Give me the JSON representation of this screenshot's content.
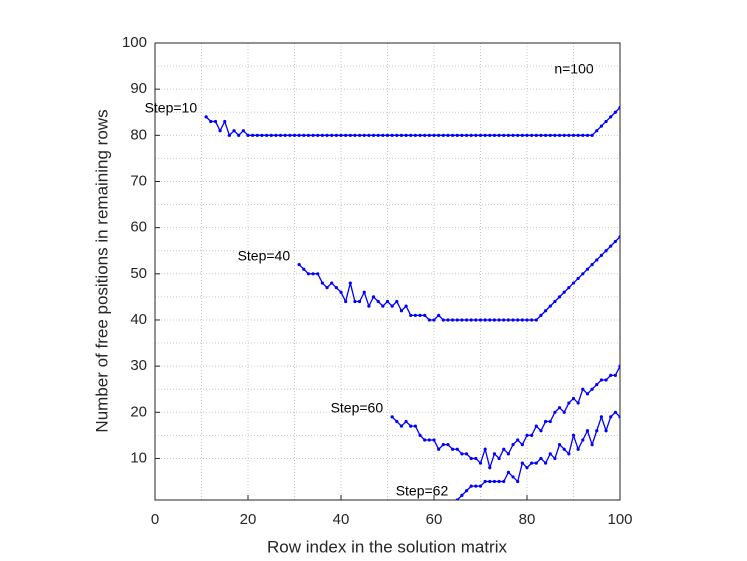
{
  "chart_data": {
    "type": "line",
    "xlabel": "Row index in the solution matrix",
    "ylabel": "Number of free positions in remaining rows",
    "annotations": [
      "n=100"
    ],
    "x": [
      1,
      2,
      3,
      4,
      5,
      6,
      7,
      8,
      9,
      10,
      11,
      12,
      13,
      14,
      15,
      16,
      17,
      18,
      19,
      20,
      21,
      22,
      23,
      24,
      25,
      26,
      27,
      28,
      29,
      30,
      31,
      32,
      33,
      34,
      35,
      36,
      37,
      38,
      39,
      40,
      41,
      42,
      43,
      44,
      45,
      46,
      47,
      48,
      49,
      50,
      51,
      52,
      53,
      54,
      55,
      56,
      57,
      58,
      59,
      60,
      61,
      62,
      63,
      64,
      65,
      66,
      67,
      68,
      69,
      70,
      71,
      72,
      73,
      74,
      75,
      76,
      77,
      78,
      79,
      80,
      81,
      82,
      83,
      84,
      85,
      86,
      87,
      88,
      89,
      90,
      91,
      92,
      93,
      94,
      95,
      96,
      97,
      98,
      99,
      100
    ],
    "series": [
      {
        "name": "Step=10",
        "color": "#0000ff",
        "values": [
          null,
          null,
          null,
          null,
          null,
          null,
          null,
          null,
          null,
          null,
          84,
          83,
          83,
          81,
          83,
          80,
          81,
          80,
          81,
          80,
          80,
          80,
          80,
          80,
          80,
          80,
          80,
          80,
          80,
          80,
          80,
          80,
          80,
          80,
          80,
          80,
          80,
          80,
          80,
          80,
          80,
          80,
          80,
          80,
          80,
          80,
          80,
          80,
          80,
          80,
          80,
          80,
          80,
          80,
          80,
          80,
          80,
          80,
          80,
          80,
          80,
          80,
          80,
          80,
          80,
          80,
          80,
          80,
          80,
          80,
          80,
          80,
          80,
          80,
          80,
          80,
          80,
          80,
          80,
          80,
          80,
          80,
          80,
          80,
          80,
          80,
          80,
          80,
          80,
          80,
          80,
          80,
          80,
          80,
          81,
          82,
          83,
          84,
          85,
          86
        ]
      },
      {
        "name": "Step=40",
        "color": "#0000ff",
        "values": [
          null,
          null,
          null,
          null,
          null,
          null,
          null,
          null,
          null,
          null,
          null,
          null,
          null,
          null,
          null,
          null,
          null,
          null,
          null,
          null,
          null,
          null,
          null,
          null,
          null,
          null,
          null,
          null,
          null,
          null,
          52,
          51,
          50,
          50,
          50,
          48,
          47,
          48,
          47,
          46,
          44,
          48,
          44,
          44,
          46,
          43,
          45,
          44,
          43,
          44,
          43,
          44,
          42,
          43,
          41,
          41,
          41,
          41,
          40,
          40,
          41,
          40,
          40,
          40,
          40,
          40,
          40,
          40,
          40,
          40,
          40,
          40,
          40,
          40,
          40,
          40,
          40,
          40,
          40,
          40,
          40,
          40,
          41,
          42,
          43,
          44,
          45,
          46,
          47,
          48,
          49,
          50,
          51,
          52,
          53,
          54,
          55,
          56,
          57,
          58
        ]
      },
      {
        "name": "Step=60",
        "color": "#0000ff",
        "values": [
          null,
          null,
          null,
          null,
          null,
          null,
          null,
          null,
          null,
          null,
          null,
          null,
          null,
          null,
          null,
          null,
          null,
          null,
          null,
          null,
          null,
          null,
          null,
          null,
          null,
          null,
          null,
          null,
          null,
          null,
          null,
          null,
          null,
          null,
          null,
          null,
          null,
          null,
          null,
          null,
          null,
          null,
          null,
          null,
          null,
          null,
          null,
          null,
          null,
          null,
          19,
          18,
          17,
          18,
          17,
          17,
          15,
          14,
          14,
          14,
          12,
          13,
          13,
          12,
          12,
          11,
          11,
          10,
          10,
          9,
          12,
          8,
          11,
          10,
          12,
          11,
          13,
          14,
          13,
          15,
          15,
          17,
          16,
          18,
          18,
          20,
          21,
          20,
          22,
          23,
          22,
          25,
          24,
          25,
          26,
          27,
          27,
          28,
          28,
          30
        ]
      },
      {
        "name": "Step=62",
        "color": "#0000ff",
        "values": [
          null,
          null,
          null,
          null,
          null,
          null,
          null,
          null,
          null,
          null,
          null,
          null,
          null,
          null,
          null,
          null,
          null,
          null,
          null,
          null,
          null,
          null,
          null,
          null,
          null,
          null,
          null,
          null,
          null,
          null,
          null,
          null,
          null,
          null,
          null,
          null,
          null,
          null,
          null,
          null,
          null,
          null,
          null,
          null,
          null,
          null,
          null,
          null,
          null,
          null,
          null,
          null,
          null,
          null,
          null,
          null,
          null,
          null,
          null,
          null,
          null,
          null,
          null,
          null,
          1,
          2,
          3,
          4,
          4,
          4,
          5,
          5,
          5,
          5,
          5,
          7,
          6,
          5,
          9,
          8,
          9,
          9,
          10,
          9,
          11,
          10,
          13,
          12,
          11,
          15,
          12,
          14,
          16,
          13,
          16,
          19,
          16,
          19,
          20,
          19
        ]
      }
    ],
    "xlim": [
      0,
      100
    ],
    "xticks": [
      0,
      20,
      40,
      60,
      80,
      100
    ],
    "ylim": [
      1,
      100
    ],
    "yticks": [
      10,
      20,
      30,
      40,
      50,
      60,
      70,
      80,
      90,
      100
    ],
    "grid": true,
    "minor_grid": true
  }
}
